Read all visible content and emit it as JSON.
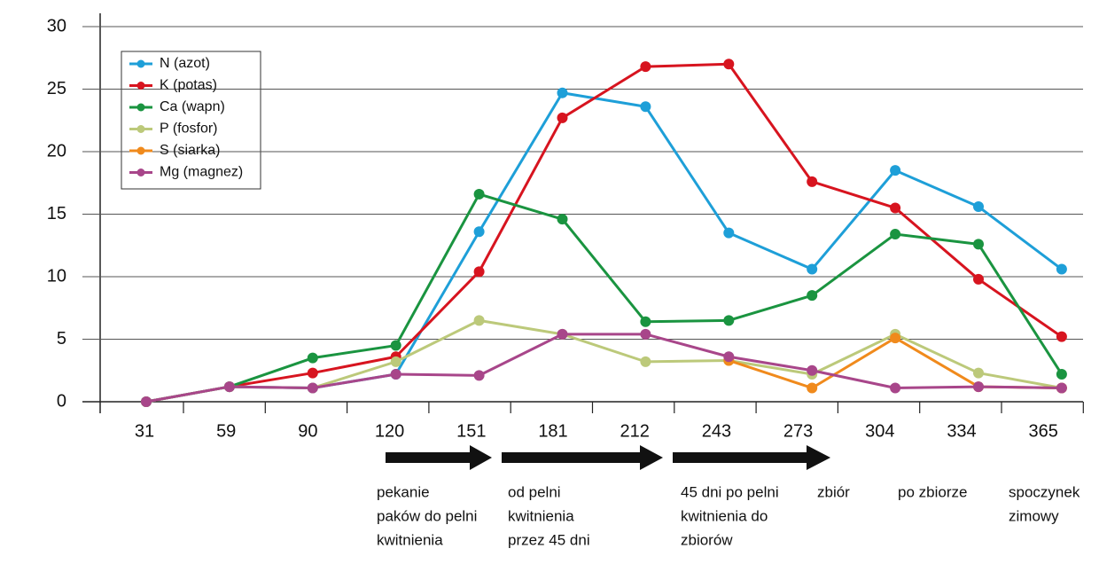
{
  "chart_data": {
    "type": "line",
    "categories": [
      "31",
      "59",
      "90",
      "120",
      "151",
      "181",
      "212",
      "243",
      "273",
      "304",
      "334",
      "365"
    ],
    "ylim": [
      0,
      30
    ],
    "yticks": [
      0,
      5,
      10,
      15,
      20,
      25,
      30
    ],
    "grid": true,
    "legend": "upper left",
    "series": [
      {
        "name": "N (azot)",
        "color": "#1e9fd8",
        "values": [
          0,
          1.2,
          1.1,
          2.2,
          13.6,
          24.7,
          23.6,
          13.5,
          10.6,
          18.5,
          15.6,
          10.6
        ]
      },
      {
        "name": "K (potas)",
        "color": "#d7141f",
        "values": [
          0,
          1.2,
          2.3,
          3.6,
          10.4,
          22.7,
          26.8,
          27.0,
          17.6,
          15.5,
          9.8,
          5.2
        ]
      },
      {
        "name": "Ca (wapn)",
        "color": "#1a9440",
        "values": [
          0,
          1.2,
          3.5,
          4.5,
          16.6,
          14.6,
          6.4,
          6.5,
          8.5,
          13.4,
          12.6,
          2.2
        ]
      },
      {
        "name": "P (fosfor)",
        "color": "#bcc97a",
        "values": [
          0,
          1.2,
          1.1,
          3.2,
          6.5,
          5.4,
          3.2,
          3.3,
          2.2,
          5.4,
          2.3,
          1.1
        ]
      },
      {
        "name": "S (siarka)",
        "color": "#f08a1c",
        "values": [
          null,
          null,
          null,
          null,
          null,
          null,
          null,
          3.3,
          1.1,
          5.1,
          1.2,
          1.1
        ]
      },
      {
        "name": "Mg (magnez)",
        "color": "#a8468a",
        "values": [
          0,
          1.2,
          1.1,
          2.2,
          2.1,
          5.4,
          5.4,
          3.6,
          2.5,
          1.1,
          1.2,
          1.1
        ]
      }
    ],
    "phases": [
      [
        "pekanie",
        "paków do pelni",
        "kwitnienia"
      ],
      [
        "od pelni",
        "kwitnienia",
        "przez 45 dni"
      ],
      [
        "45 dni po pelni",
        "kwitnienia do",
        "zbiorów"
      ],
      [
        "zbiór"
      ],
      [
        "po zbiorze"
      ],
      [
        "spoczynek",
        "zimowy"
      ]
    ]
  }
}
